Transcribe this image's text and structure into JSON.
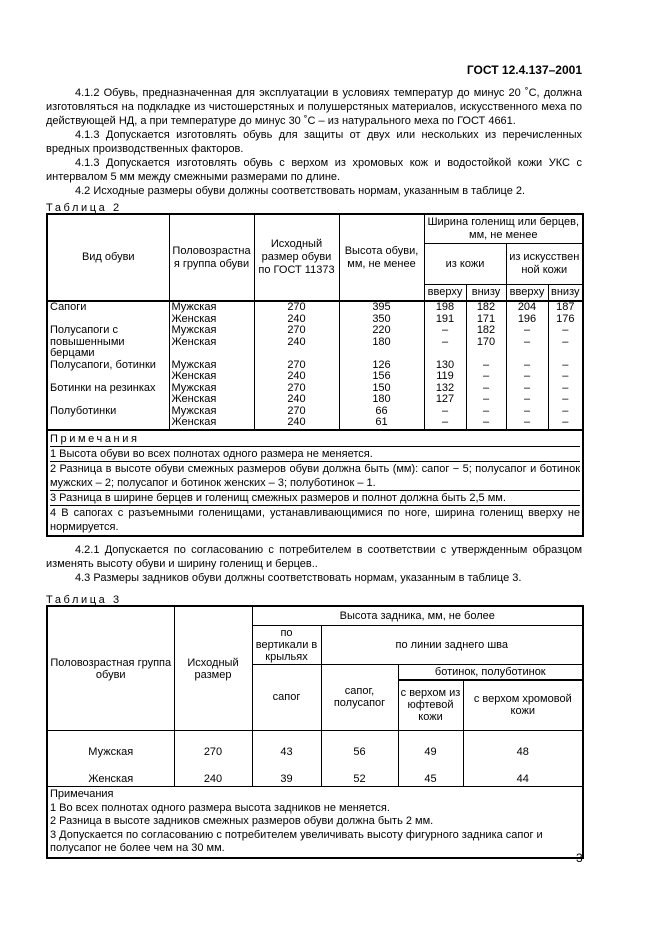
{
  "header": {
    "doc_id": "ГОСТ 12.4.137–2001"
  },
  "intro_paragraphs": [
    "4.1.2 Обувь, предназначенная для эксплуатации в условиях температур до минус 20 ˚С, должна изготовляться на подкладке из чистошерстяных и полушерстяных материалов, искусственного меха по действующей НД, а при температуре до минус 30 ˚С – из натурального меха по ГОСТ 4661.",
    "4.1.3 Допускается изготовлять обувь для защиты от двух или нескольких из перечисленных вредных производственных факторов.",
    "4.1.3 Допускается изготовлять обувь с верхом из хромовых кож и водостойкой кожи УКС с интервалом 5 мм между смежными размерами по длине.",
    "4.2 Исходные размеры обуви должны соответствовать нормам, указанным в таблице 2."
  ],
  "table2": {
    "caption": "Таблица 2",
    "headers": {
      "kind": "Вид обуви",
      "group": "Половозрастная группа обуви",
      "size": "Исходный размер обуви по ГОСТ 11373",
      "height": "Высота обуви, мм,  не менее",
      "width": "Ширина голенищ или берцев, мм, не менее",
      "leather": "из кожи",
      "artificial": "из искусственной кожи",
      "top1": "вверху",
      "bottom1": "внизу",
      "top2": "вверху",
      "bottom2": "внизу"
    },
    "groups": [
      {
        "kind": "Сапоги",
        "rows": [
          [
            "Мужская",
            "270",
            "395",
            "198",
            "182",
            "204",
            "187"
          ],
          [
            "Женская",
            "240",
            "350",
            "191",
            "171",
            "196",
            "176"
          ]
        ]
      },
      {
        "kind": "Полусапоги с повышенными берцами",
        "rows": [
          [
            "Мужская",
            "270",
            "220",
            "–",
            "182",
            "–",
            "–"
          ],
          [
            "Женская",
            "240",
            "180",
            "–",
            "170",
            "–",
            "–"
          ],
          [
            "",
            "",
            "",
            "",
            "",
            "",
            ""
          ]
        ]
      },
      {
        "kind": "Полусапоги, ботинки",
        "rows": [
          [
            "Мужская",
            "270",
            "126",
            "130",
            "–",
            "–",
            "–"
          ],
          [
            "Женская",
            "240",
            "156",
            "119",
            "–",
            "–",
            "–"
          ]
        ]
      },
      {
        "kind": "Ботинки на резинках",
        "rows": [
          [
            "Мужская",
            "270",
            "150",
            "132",
            "–",
            "–",
            "–"
          ],
          [
            "Женская",
            "240",
            "180",
            "127",
            "–",
            "–",
            "–"
          ]
        ]
      },
      {
        "kind": "Полуботинки",
        "rows": [
          [
            "Мужская",
            "270",
            "66",
            "–",
            "–",
            "–",
            "–"
          ],
          [
            "Женская",
            "240",
            "61",
            "–",
            "–",
            "–",
            "–"
          ]
        ]
      }
    ],
    "notes_title": "Примечания",
    "notes": [
      "1 Высота обуви во всех полнотах одного размера не меняется.",
      "2 Разница в высоте обуви смежных размеров обуви должна быть (мм): сапог − 5; полусапог и ботинок мужских – 2; полусапог и ботинок женских – 3; полуботинок – 1.",
      "3 Разница в ширине берцев и голенищ смежных размеров и полнот должна быть 2,5 мм.",
      "4 В сапогах с разъемными голенищами, устанавливающимися по ноге, ширина голенищ вверху не нормируется."
    ]
  },
  "mid_paragraphs": [
    "4.2.1 Допускается по согласованию с потребителем в соответствии с утвержденным образцом изменять высоту обуви и ширину голенищ и берцев..",
    "4.3 Размеры задников обуви должны соответствовать нормам, указанным в таблице 3."
  ],
  "table3": {
    "caption": "Таблица 3",
    "headers": {
      "group": "Половозрастная группа обуви",
      "size": "Исходный размер",
      "heel_height": "Высота задника, мм, не более",
      "vertical": "по вертикали в крыльях",
      "seam": "по линии заднего шва",
      "boots_low": "ботинок, полуботинок",
      "boot": "сапог",
      "boot_half": "сапог, полусапог",
      "yuft": "с верхом из юфтевой кожи",
      "chrome": "с верхом хромовой кожи"
    },
    "rows": [
      [
        "Мужская",
        "270",
        "43",
        "56",
        "49",
        "48"
      ],
      [
        "Женская",
        "240",
        "39",
        "52",
        "45",
        "44"
      ]
    ],
    "notes_title": "Примечания",
    "notes": [
      "1 Во всех полнотах одного размера высота задников не меняется.",
      "2 Разница в высоте задников смежных размеров обуви должна быть 2 мм.",
      "3 Допускается по согласованию с потребителем увеличивать высоту фигурного задника сапог и полусапог  не более чем на 30 мм."
    ]
  },
  "page_number": "3"
}
